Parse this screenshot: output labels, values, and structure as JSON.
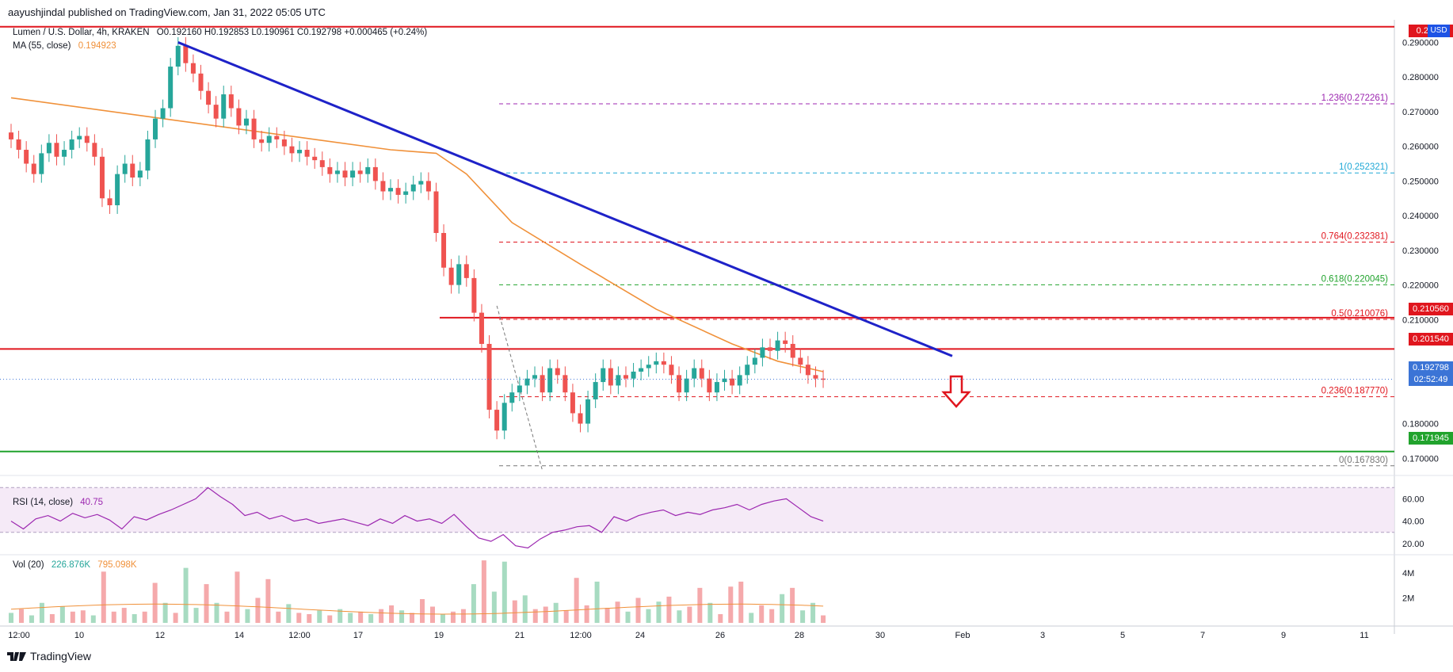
{
  "header": {
    "publisher": "aayushjindal published on TradingView.com, Jan 31, 2022 05:05 UTC"
  },
  "footer": {
    "brand": "TradingView"
  },
  "main_legend": {
    "symbol": "Lumen / U.S. Dollar, 4h, KRAKEN",
    "ohlc": "O0.192160  H0.192853  L0.190961  C0.192798  +0.000465 (+0.24%)",
    "ma_label": "MA (55, close)",
    "ma_value": "0.194923",
    "currency": "USD"
  },
  "rsi_legend": {
    "label": "RSI (14, close)",
    "value": "40.75"
  },
  "vol_legend": {
    "label": "Vol (20)",
    "v1": "226.876K",
    "v2": "795.098K"
  },
  "price_boxes": {
    "top": "0.294...",
    "r1": "0.210560",
    "r2": "0.201540",
    "last": "0.192798",
    "countdown": "02:52:49",
    "s1": "0.171945"
  },
  "colors": {
    "up": "#26a69a",
    "down": "#ef5350",
    "ma": "#f0913a",
    "trend": "#1e22c8",
    "hline_red": "#e0161e",
    "hline_green": "#21a32d",
    "rsi": "#9c27b0",
    "arrow": "#e0161e"
  },
  "chart_data": {
    "type": "candlestick",
    "title": "Lumen / U.S. Dollar, 4h, KRAKEN",
    "x_ticks": [
      "12:00",
      "10",
      "12",
      "14",
      "12:00",
      "17",
      "19",
      "21",
      "12:00",
      "24",
      "26",
      "28",
      "30",
      "Feb",
      "3",
      "5",
      "7",
      "9",
      "11"
    ],
    "y_ticks": [
      "0.290000",
      "0.280000",
      "0.270000",
      "0.260000",
      "0.250000",
      "0.240000",
      "0.230000",
      "0.220000",
      "0.210000",
      "0.180000",
      "0.170000"
    ],
    "ylim": [
      0.1655,
      0.2965
    ],
    "candles_close": [
      0.262,
      0.259,
      0.255,
      0.252,
      0.258,
      0.261,
      0.257,
      0.259,
      0.262,
      0.263,
      0.261,
      0.257,
      0.245,
      0.243,
      0.252,
      0.255,
      0.251,
      0.253,
      0.262,
      0.268,
      0.271,
      0.283,
      0.289,
      0.284,
      0.281,
      0.276,
      0.272,
      0.268,
      0.275,
      0.271,
      0.266,
      0.268,
      0.262,
      0.261,
      0.263,
      0.262,
      0.26,
      0.258,
      0.259,
      0.257,
      0.256,
      0.254,
      0.252,
      0.253,
      0.251,
      0.253,
      0.252,
      0.254,
      0.25,
      0.247,
      0.248,
      0.246,
      0.247,
      0.249,
      0.25,
      0.247,
      0.235,
      0.225,
      0.22,
      0.226,
      0.222,
      0.212,
      0.203,
      0.184,
      0.178,
      0.186,
      0.189,
      0.191,
      0.193,
      0.194,
      0.189,
      0.196,
      0.194,
      0.189,
      0.183,
      0.18,
      0.187,
      0.192,
      0.196,
      0.191,
      0.194,
      0.193,
      0.195,
      0.196,
      0.197,
      0.198,
      0.197,
      0.194,
      0.189,
      0.193,
      0.196,
      0.193,
      0.189,
      0.192,
      0.193,
      0.191,
      0.194,
      0.197,
      0.199,
      0.202,
      0.201,
      0.204,
      0.203,
      0.199,
      0.197,
      0.194,
      0.193,
      0.192798
    ],
    "ma55_points": [
      [
        0,
        0.274
      ],
      [
        20,
        0.268
      ],
      [
        30,
        0.265
      ],
      [
        40,
        0.262
      ],
      [
        50,
        0.259
      ],
      [
        56,
        0.258
      ],
      [
        60,
        0.252
      ],
      [
        66,
        0.238
      ],
      [
        75,
        0.226
      ],
      [
        85,
        0.213
      ],
      [
        95,
        0.203
      ],
      [
        101,
        0.198
      ],
      [
        107,
        0.195
      ]
    ],
    "trendline": [
      [
        22,
        0.29
      ],
      [
        124,
        0.1995
      ]
    ],
    "horizontal_lines": [
      {
        "value": 0.2945,
        "color": "red"
      },
      {
        "value": 0.21056,
        "color": "red"
      },
      {
        "value": 0.20154,
        "color": "red"
      },
      {
        "value": 0.171945,
        "color": "green"
      }
    ],
    "fibonacci": [
      {
        "label": "1.236(0.272261)",
        "value": 0.272261,
        "color": "#9c27b0"
      },
      {
        "label": "1(0.252321)",
        "value": 0.252321,
        "color": "#1fa8d6"
      },
      {
        "label": "0.764(0.232381)",
        "value": 0.232381,
        "color": "#e0161e"
      },
      {
        "label": "0.618(0.220045)",
        "value": 0.220045,
        "color": "#21a32d"
      },
      {
        "label": "0.5(0.210076)",
        "value": 0.210076,
        "color": "#e0161e"
      },
      {
        "label": "0.236(0.187770)",
        "value": 0.18777,
        "color": "#e0161e"
      },
      {
        "label": "0(0.167830)",
        "value": 0.16783,
        "color": "#777777"
      }
    ],
    "rsi": {
      "yticks": [
        "60.00",
        "40.00",
        "20.00"
      ],
      "ylim": [
        10,
        78
      ],
      "values": [
        40,
        33,
        42,
        45,
        40,
        47,
        43,
        46,
        41,
        33,
        44,
        41,
        46,
        50,
        55,
        60,
        70,
        62,
        55,
        45,
        48,
        42,
        45,
        40,
        42,
        38,
        40,
        42,
        39,
        36,
        42,
        38,
        45,
        40,
        42,
        38,
        46,
        35,
        25,
        22,
        28,
        18,
        16,
        24,
        30,
        32,
        35,
        36,
        30,
        44,
        40,
        45,
        48,
        50,
        45,
        48,
        46,
        50,
        52,
        55,
        50,
        55,
        58,
        60,
        52,
        44,
        40
      ]
    },
    "volume": {
      "yticks": [
        "4M",
        "2M"
      ],
      "ylim": [
        0,
        5.2
      ],
      "values": [
        0.8,
        1.1,
        0.6,
        1.6,
        0.7,
        1.3,
        0.9,
        1.0,
        0.6,
        4.1,
        0.9,
        1.2,
        0.7,
        0.9,
        3.2,
        1.6,
        0.8,
        4.4,
        1.2,
        3.1,
        1.6,
        0.9,
        4.1,
        1.1,
        2.0,
        3.5,
        0.9,
        1.5,
        0.8,
        0.7,
        1.0,
        0.6,
        1.1,
        0.8,
        0.9,
        0.7,
        1.1,
        1.4,
        1.0,
        0.8,
        1.9,
        1.3,
        0.7,
        0.9,
        1.1,
        3.1,
        5.0,
        2.5,
        4.9,
        1.8,
        2.2,
        1.1,
        1.3,
        1.6,
        1.0,
        3.6,
        1.4,
        3.3,
        1.2,
        1.7,
        0.9,
        2.0,
        1.1,
        1.7,
        2.1,
        1.0,
        1.3,
        2.8,
        1.6,
        0.7,
        2.9,
        3.3,
        0.8,
        1.4,
        1.1,
        2.3,
        2.8,
        1.0,
        1.6,
        0.6
      ]
    }
  }
}
